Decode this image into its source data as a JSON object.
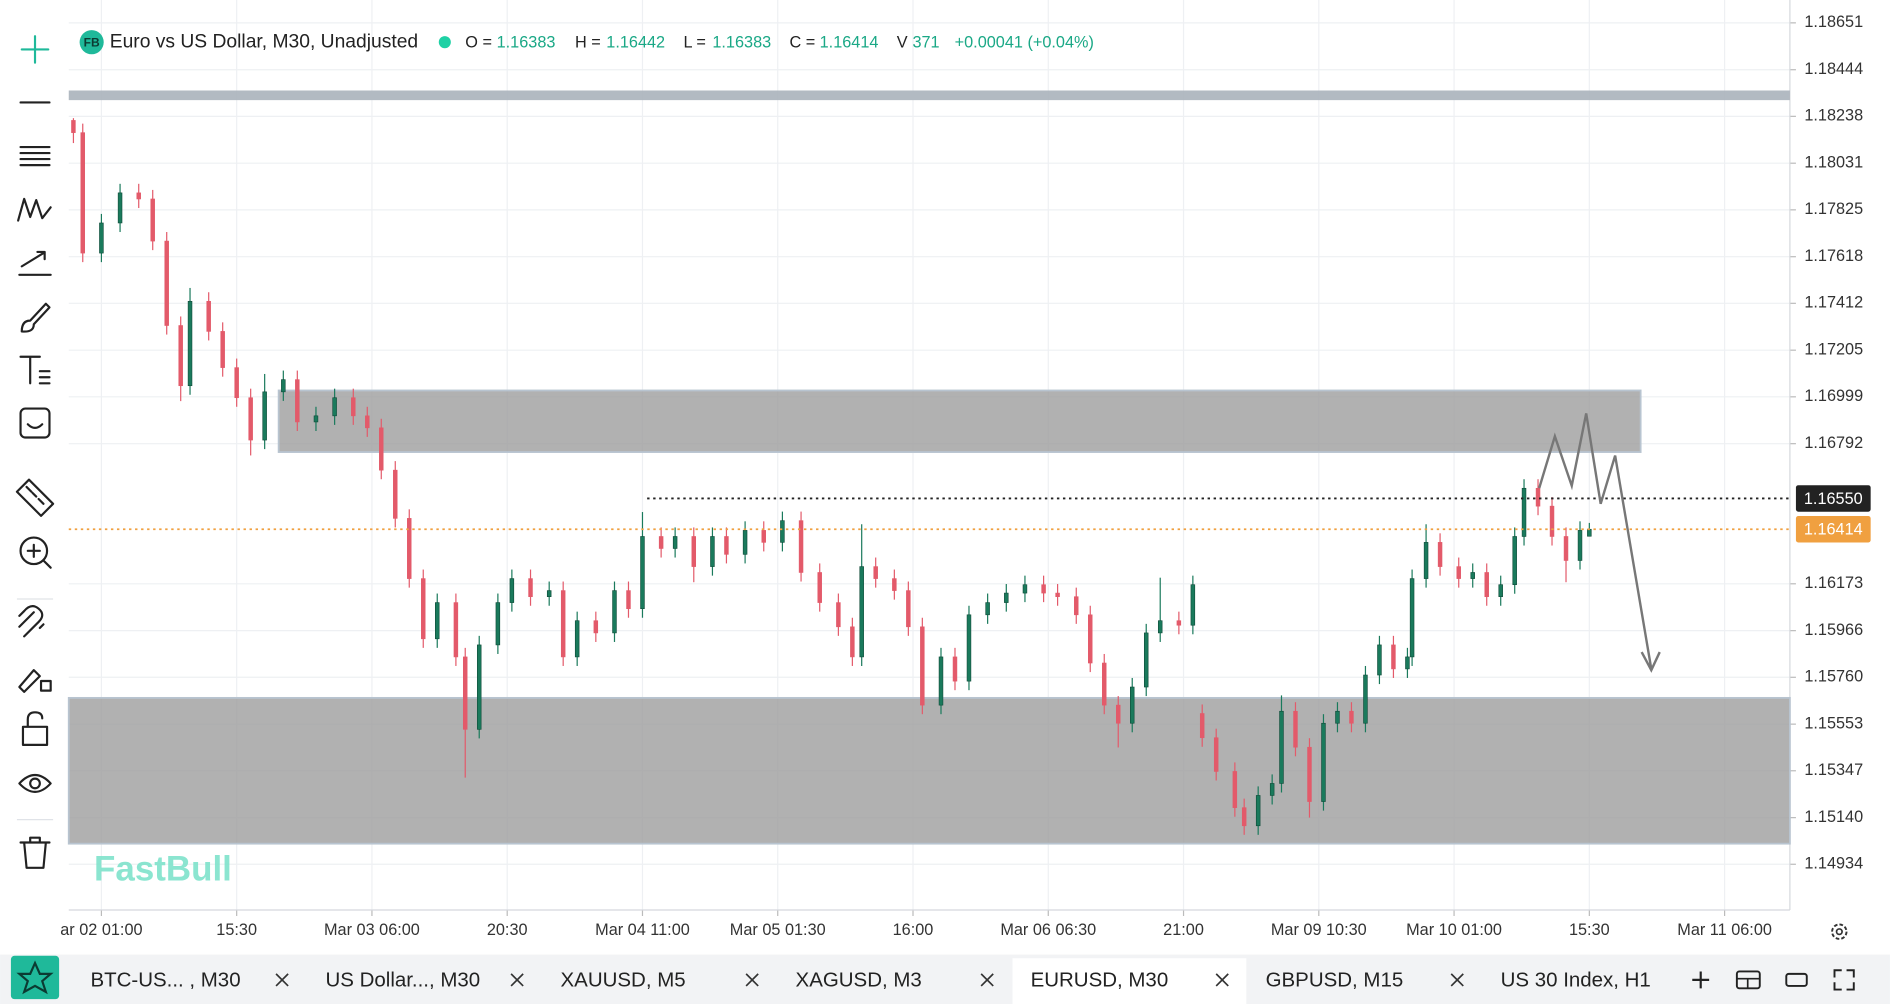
{
  "header": {
    "badge": "FB",
    "symbol": "Euro vs US Dollar, M30, Unadjusted",
    "legend": [
      {
        "label": "O =",
        "value": 1.16383
      },
      {
        "label": "H =",
        "value": 1.16442
      },
      {
        "label": "L =",
        "value": 1.16383
      },
      {
        "label": "C =",
        "value": 1.16414
      },
      {
        "label": "V",
        "value": 371
      }
    ],
    "change": "+0.00041 (+0.04%)",
    "watermark": "FastBull"
  },
  "chart_data": {
    "type": "candlestick",
    "up_color": "#1a7a5c",
    "down_color": "#e35a6a",
    "grid": true,
    "xlim": [
      -7,
      362
    ],
    "xticks": [
      {
        "value": 0,
        "label": "ar 02 01:00"
      },
      {
        "value": 29,
        "label": "15:30"
      },
      {
        "value": 58,
        "label": "Mar 03 06:00"
      },
      {
        "value": 87,
        "label": "20:30"
      },
      {
        "value": 116,
        "label": "Mar 04 11:00"
      },
      {
        "value": 145,
        "label": "Mar 05 01:30"
      },
      {
        "value": 174,
        "label": "16:00"
      },
      {
        "value": 203,
        "label": "Mar 06 06:30"
      },
      {
        "value": 232,
        "label": "21:00"
      },
      {
        "value": 261,
        "label": "Mar 09 10:30"
      },
      {
        "value": 290,
        "label": "Mar 10 01:00"
      },
      {
        "value": 319,
        "label": "15:30"
      },
      {
        "value": 348,
        "label": "Mar 11 06:00"
      }
    ],
    "ylim": [
      1.14732,
      1.18752
    ],
    "yticks": [
      1.18651,
      1.18444,
      1.18238,
      1.18031,
      1.17825,
      1.17618,
      1.17412,
      1.17205,
      1.16999,
      1.16792,
      1.16173,
      1.15966,
      {
        "value": 1.1576,
        "label": "1.15760"
      },
      1.15553,
      1.15347,
      {
        "value": 1.1514,
        "label": "1.15140"
      },
      1.14934
    ],
    "x": [
      -6,
      -4,
      0,
      4,
      8,
      11,
      14,
      17,
      19,
      23,
      26,
      29,
      32,
      35,
      39,
      42,
      46,
      50,
      54,
      57,
      60,
      63,
      66,
      69,
      72,
      76,
      78,
      81,
      85,
      88,
      92,
      96,
      99,
      102,
      106,
      110,
      113,
      116,
      120,
      123,
      127,
      131,
      134,
      138,
      142,
      146,
      150,
      154,
      158,
      161,
      163,
      166,
      170,
      173,
      176,
      180,
      183,
      186,
      190,
      194,
      198,
      202,
      205,
      209,
      212,
      215,
      218,
      221,
      224,
      227,
      231,
      234,
      236,
      239,
      243,
      245,
      248,
      251,
      253,
      256,
      259,
      262,
      265,
      268,
      271,
      274,
      277,
      280,
      281,
      284,
      287,
      291,
      294,
      297,
      300,
      303,
      305,
      308,
      311,
      314,
      317,
      319
    ],
    "open": [
      1.1822,
      1.18166,
      1.17634,
      1.17767,
      1.179,
      1.17873,
      1.17687,
      1.17314,
      1.17048,
      1.17421,
      1.17288,
      1.17128,
      1.16995,
      1.16808,
      1.17021,
      1.17075,
      1.16888,
      1.16915,
      1.16995,
      1.16915,
      1.16862,
      1.16675,
      1.16462,
      1.16196,
      1.1593,
      1.1609,
      1.1585,
      1.1553,
      1.15903,
      1.1609,
      1.16196,
      1.16116,
      1.16143,
      1.1585,
      1.1601,
      1.15956,
      1.16143,
      1.16063,
      1.16382,
      1.16329,
      1.16382,
      1.16249,
      1.16382,
      1.16303,
      1.16409,
      1.16356,
      1.16452,
      1.16223,
      1.1609,
      1.15983,
      1.1585,
      1.16249,
      1.16196,
      1.16143,
      1.15983,
      1.15637,
      1.1585,
      1.15743,
      1.16036,
      1.1609,
      1.16132,
      1.16169,
      1.16132,
      1.16116,
      1.16036,
      1.15823,
      1.15637,
      1.15557,
      1.15717,
      1.15956,
      1.1601,
      1.1599,
      1.156,
      1.15493,
      1.15344,
      1.15184,
      1.15104,
      1.15238,
      1.15291,
      1.1561,
      1.15451,
      1.15211,
      1.15557,
      1.1561,
      1.15557,
      1.1577,
      1.15903,
      1.15797,
      1.1585,
      1.16196,
      1.16356,
      1.16249,
      1.16196,
      1.16223,
      1.16116,
      1.16169,
      1.16382,
      1.16595,
      1.16516,
      1.16382,
      1.16276,
      1.16383
    ],
    "high": [
      1.1823,
      1.18206,
      1.17807,
      1.1794,
      1.1794,
      1.17913,
      1.17727,
      1.17354,
      1.1748,
      1.17461,
      1.17328,
      1.17168,
      1.17035,
      1.171,
      1.17115,
      1.17115,
      1.16955,
      1.17035,
      1.17035,
      1.16955,
      1.16902,
      1.16715,
      1.16502,
      1.16236,
      1.1613,
      1.1613,
      1.1589,
      1.15943,
      1.1613,
      1.16236,
      1.16236,
      1.16183,
      1.16183,
      1.1605,
      1.1605,
      1.16183,
      1.16183,
      1.1649,
      1.16422,
      1.16422,
      1.16422,
      1.16422,
      1.16422,
      1.16449,
      1.16449,
      1.16492,
      1.16492,
      1.16263,
      1.1613,
      1.16023,
      1.16436,
      1.16289,
      1.16236,
      1.16183,
      1.16023,
      1.1589,
      1.1589,
      1.16076,
      1.1613,
      1.16172,
      1.16209,
      1.16209,
      1.16172,
      1.16156,
      1.16076,
      1.15863,
      1.15677,
      1.15757,
      1.15996,
      1.162,
      1.1605,
      1.16209,
      1.1564,
      1.15533,
      1.15384,
      1.15224,
      1.15278,
      1.15331,
      1.1568,
      1.1565,
      1.15491,
      1.15597,
      1.1565,
      1.1565,
      1.1581,
      1.15943,
      1.15943,
      1.1589,
      1.16236,
      1.16436,
      1.16396,
      1.16289,
      1.16263,
      1.16263,
      1.16209,
      1.16422,
      1.16635,
      1.16635,
      1.16556,
      1.16422,
      1.16449,
      1.16442
    ],
    "low": [
      1.1812,
      1.17594,
      1.17594,
      1.17727,
      1.17833,
      1.17647,
      1.17274,
      1.1698,
      1.17008,
      1.17248,
      1.17088,
      1.16955,
      1.1674,
      1.16768,
      1.16981,
      1.16848,
      1.16848,
      1.16875,
      1.16875,
      1.16822,
      1.16635,
      1.16422,
      1.16156,
      1.1589,
      1.1589,
      1.1581,
      1.15317,
      1.1549,
      1.15863,
      1.1605,
      1.16076,
      1.16076,
      1.1581,
      1.1581,
      1.15916,
      1.15916,
      1.16023,
      1.16023,
      1.16289,
      1.16289,
      1.1618,
      1.16209,
      1.16263,
      1.16263,
      1.16316,
      1.16316,
      1.16183,
      1.1605,
      1.15943,
      1.1581,
      1.1581,
      1.16156,
      1.16103,
      1.15943,
      1.15597,
      1.15597,
      1.15703,
      1.15703,
      1.15996,
      1.1605,
      1.16092,
      1.16092,
      1.16076,
      1.15996,
      1.15783,
      1.15597,
      1.1545,
      1.15517,
      1.15677,
      1.15916,
      1.1595,
      1.1595,
      1.15453,
      1.15304,
      1.15144,
      1.15064,
      1.15064,
      1.15198,
      1.15251,
      1.15411,
      1.1514,
      1.15171,
      1.15517,
      1.15517,
      1.15517,
      1.1573,
      1.15757,
      1.15757,
      1.1581,
      1.16156,
      1.16209,
      1.16156,
      1.16156,
      1.16076,
      1.16076,
      1.16129,
      1.16342,
      1.16476,
      1.16342,
      1.1618,
      1.16236,
      1.16383
    ],
    "close": [
      1.18166,
      1.17634,
      1.17767,
      1.179,
      1.17873,
      1.17687,
      1.17314,
      1.17048,
      1.17421,
      1.17288,
      1.17128,
      1.16995,
      1.16808,
      1.17021,
      1.17075,
      1.16888,
      1.16915,
      1.16995,
      1.16915,
      1.16862,
      1.16675,
      1.16462,
      1.16196,
      1.1593,
      1.1609,
      1.1585,
      1.1553,
      1.15903,
      1.1609,
      1.16196,
      1.16116,
      1.16143,
      1.1585,
      1.1601,
      1.15956,
      1.16143,
      1.16063,
      1.16382,
      1.16329,
      1.16382,
      1.16249,
      1.16382,
      1.16303,
      1.16409,
      1.16356,
      1.16452,
      1.16223,
      1.1609,
      1.15983,
      1.1585,
      1.16249,
      1.16196,
      1.16143,
      1.15983,
      1.15637,
      1.1585,
      1.15743,
      1.16036,
      1.1609,
      1.16132,
      1.16169,
      1.16132,
      1.16116,
      1.16036,
      1.15823,
      1.15637,
      1.15557,
      1.15717,
      1.15956,
      1.1601,
      1.1599,
      1.16169,
      1.15493,
      1.15344,
      1.15184,
      1.15104,
      1.15238,
      1.15291,
      1.1561,
      1.15451,
      1.15211,
      1.15557,
      1.1561,
      1.15557,
      1.1577,
      1.15903,
      1.15797,
      1.1585,
      1.16196,
      1.16356,
      1.16249,
      1.16196,
      1.16223,
      1.16116,
      1.16169,
      1.16382,
      1.16595,
      1.16516,
      1.16382,
      1.16276,
      1.16409,
      1.16414
    ],
    "zones": [
      {
        "top": 1.17027,
        "bottom": 1.16755,
        "from": 38,
        "to": 330,
        "color": "#9e9e9e"
      },
      {
        "top": 1.15669,
        "bottom": 1.15025,
        "from": -7,
        "to": 362,
        "color": "#9e9e9e"
      }
    ],
    "levels": [
      {
        "value": 1.18331,
        "from": -7,
        "color": "#aab2bb",
        "style": "solid"
      },
      {
        "value": 1.1655,
        "from": 117,
        "color": "#222222",
        "style": "dotted",
        "label": "1.16550"
      },
      {
        "value": 1.16414,
        "from": -7,
        "color": "#f0a040",
        "style": "dotted",
        "label": "1.16414"
      }
    ]
  },
  "tabs": [
    {
      "label": "BTC-US... , M30"
    },
    {
      "label": "US Dollar..., M30"
    },
    {
      "label": "XAUUSD, M5"
    },
    {
      "label": "XAGUSD, M3"
    },
    {
      "label": "EURUSD, M30",
      "active": true
    },
    {
      "label": "GBPUSD, M15"
    },
    {
      "label": "US 30 Index, H1"
    }
  ]
}
